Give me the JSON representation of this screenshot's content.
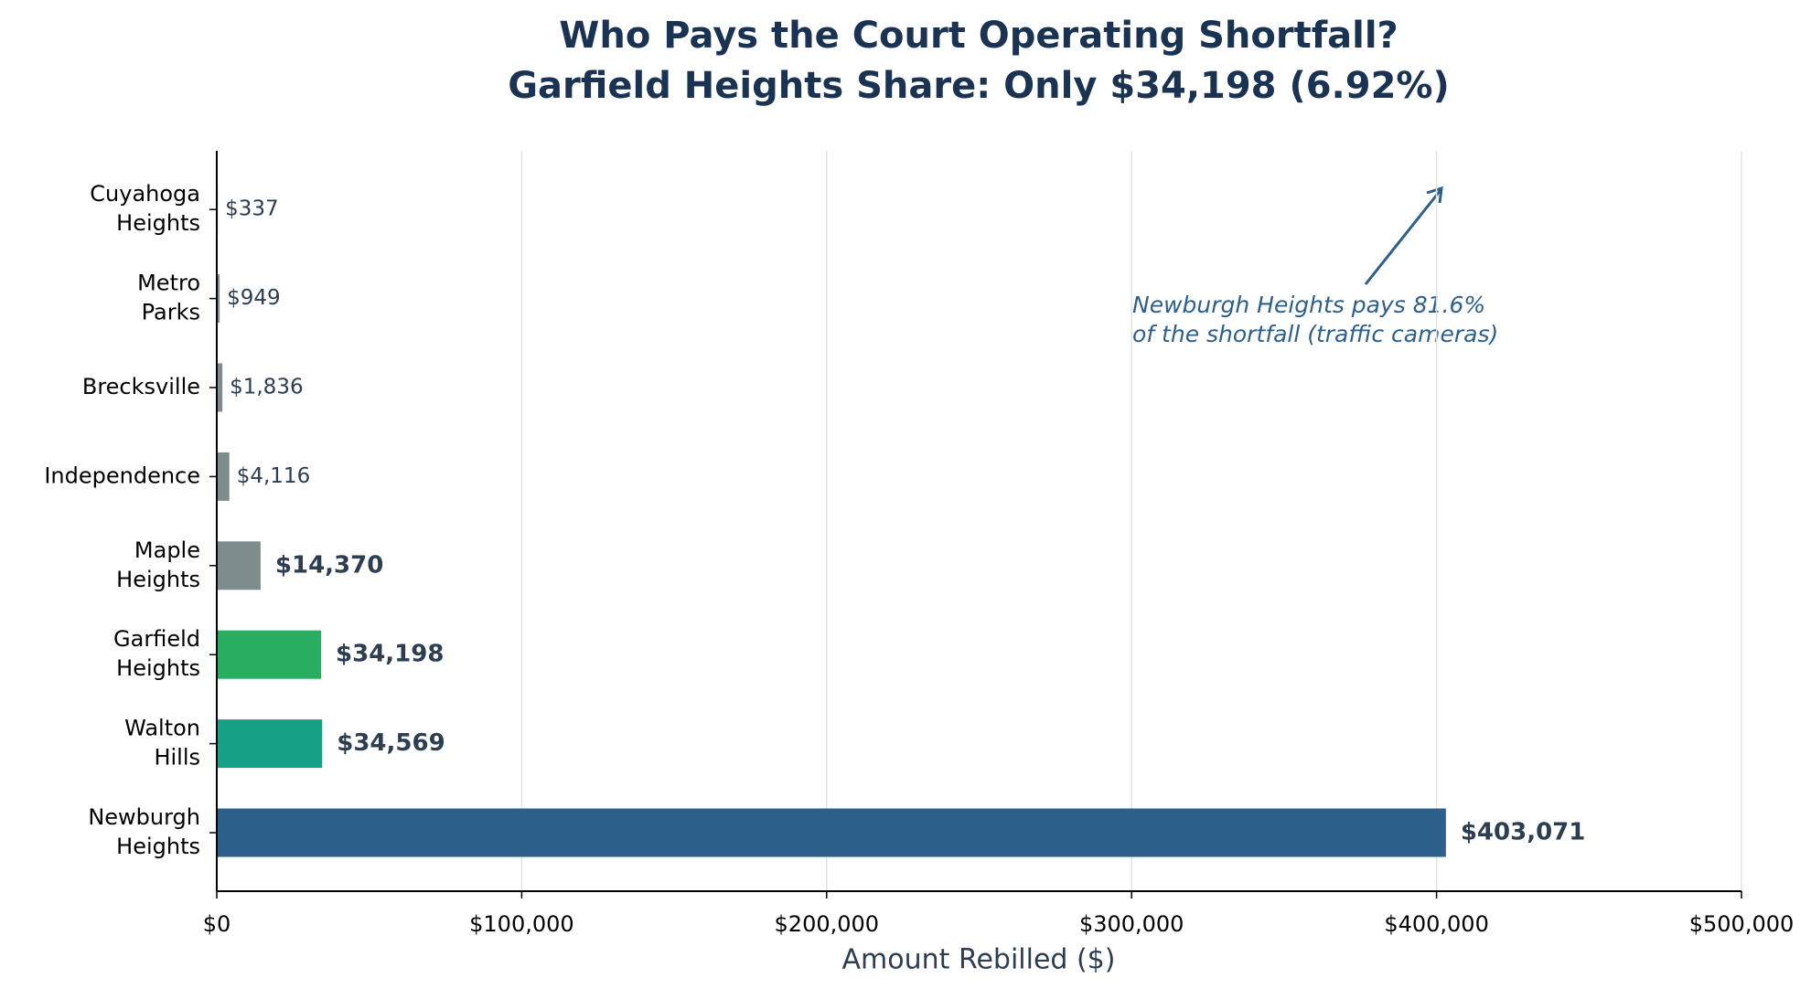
{
  "chart_data": {
    "type": "bar",
    "orientation": "horizontal",
    "title": "Who Pays the Court Operating Shortfall?",
    "subtitle": "Garfield Heights Share: Only $34,198 (6.92%)",
    "x_label": "Amount Rebilled ($)",
    "categories": [
      "Newburgh Heights",
      "Walton Hills",
      "Garfield Heights",
      "Maple Heights",
      "Independence",
      "Brecksville",
      "Metro Parks",
      "Cuyahoga Heights"
    ],
    "values": [
      403071,
      34569,
      34198,
      14370,
      4116,
      1836,
      949,
      337
    ],
    "value_labels": [
      "$403,071",
      "$34,569",
      "$34,198",
      "$14,370",
      "$4,116",
      "$1,836",
      "$949",
      "$337"
    ],
    "colors": [
      "#2c5f8a",
      "#16a085",
      "#27ae60",
      "#7f8c8d",
      "#7f8c8d",
      "#7f8c8d",
      "#7f8c8d",
      "#7f8c8d"
    ],
    "xlim": [
      0,
      500000
    ],
    "xticks": [
      {
        "value": 0,
        "label": "$0"
      },
      {
        "value": 100000,
        "label": "$100,000"
      },
      {
        "value": 200000,
        "label": "$200,000"
      },
      {
        "value": 300000,
        "label": "$300,000"
      },
      {
        "value": 400000,
        "label": "$400,000"
      },
      {
        "value": 500000,
        "label": "$500,000"
      }
    ],
    "grid": true,
    "annotation": [
      "Newburgh Heights pays 81.6%",
      "of the shortfall (traffic cameras)"
    ]
  }
}
